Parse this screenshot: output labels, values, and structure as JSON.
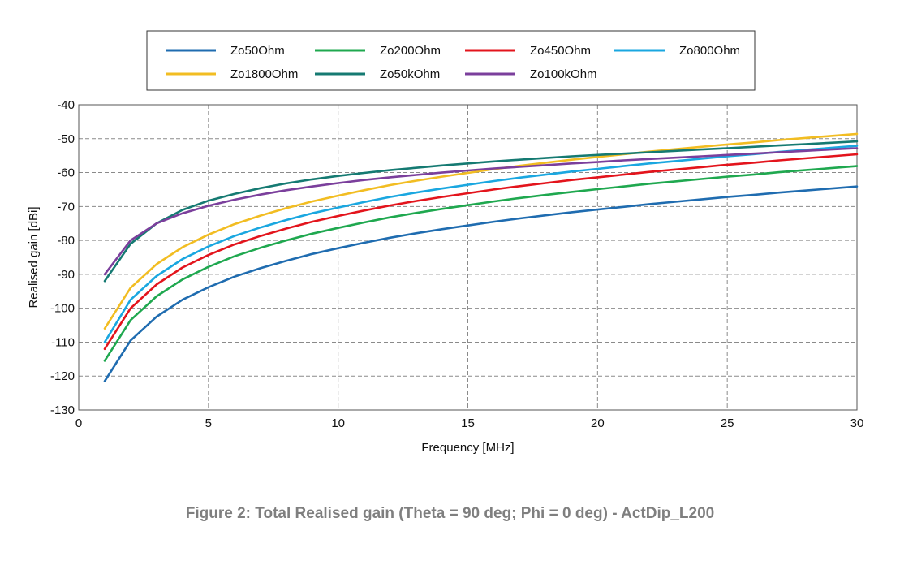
{
  "caption": "Figure 2: Total Realised gain (Theta = 90 deg; Phi = 0 deg) - ActDip_L200",
  "chart_data": {
    "type": "line",
    "xlabel": "Frequency [MHz]",
    "ylabel": "Realised gain [dBi]",
    "xlim": [
      0,
      30
    ],
    "ylim": [
      -130,
      -40
    ],
    "xticks": [
      0,
      5,
      10,
      15,
      20,
      25,
      30
    ],
    "yticks": [
      -40,
      -50,
      -60,
      -70,
      -80,
      -90,
      -100,
      -110,
      -120,
      -130
    ],
    "grid": true,
    "legend_position": "top",
    "x": [
      1,
      2,
      3,
      4,
      5,
      6,
      7,
      8,
      9,
      10,
      11,
      12,
      13,
      14,
      15,
      16,
      17,
      18,
      19,
      20,
      21,
      22,
      23,
      24,
      25,
      26,
      27,
      28,
      29,
      30
    ],
    "series": [
      {
        "name": "Zo50Ohm",
        "color": "#1f6cb0",
        "values": [
          -121.5,
          -109.5,
          -102.5,
          -97.5,
          -93.8,
          -90.7,
          -88.2,
          -86,
          -84,
          -82.3,
          -80.7,
          -79.2,
          -77.9,
          -76.7,
          -75.6,
          -74.5,
          -73.5,
          -72.6,
          -71.7,
          -70.9,
          -70.1,
          -69.3,
          -68.6,
          -67.9,
          -67.2,
          -66.6,
          -65.9,
          -65.3,
          -64.7,
          -64.1
        ]
      },
      {
        "name": "Zo200Ohm",
        "color": "#1fa84f",
        "values": [
          -115.5,
          -103.5,
          -96.5,
          -91.5,
          -87.8,
          -84.7,
          -82.2,
          -80,
          -78,
          -76.3,
          -74.7,
          -73.2,
          -71.9,
          -70.7,
          -69.6,
          -68.5,
          -67.5,
          -66.6,
          -65.7,
          -64.9,
          -64.1,
          -63.3,
          -62.6,
          -61.9,
          -61.2,
          -60.6,
          -59.9,
          -59.3,
          -58.7,
          -58.1
        ]
      },
      {
        "name": "Zo450Ohm",
        "color": "#e3141c",
        "values": [
          -112,
          -100,
          -93,
          -88,
          -84.3,
          -81.2,
          -78.7,
          -76.5,
          -74.5,
          -72.8,
          -71.2,
          -69.7,
          -68.4,
          -67.2,
          -66.1,
          -65,
          -64,
          -63.1,
          -62.2,
          -61.4,
          -60.6,
          -59.8,
          -59.1,
          -58.4,
          -57.7,
          -57.1,
          -56.4,
          -55.8,
          -55.2,
          -54.6
        ]
      },
      {
        "name": "Zo800Ohm",
        "color": "#1aa7e0",
        "values": [
          -110,
          -97.5,
          -90.5,
          -85.5,
          -81.8,
          -78.7,
          -76.2,
          -74,
          -72,
          -70.3,
          -68.7,
          -67.2,
          -65.9,
          -64.7,
          -63.6,
          -62.5,
          -61.5,
          -60.6,
          -59.7,
          -58.9,
          -58.1,
          -57.3,
          -56.6,
          -55.9,
          -55.2,
          -54.6,
          -53.9,
          -53.3,
          -52.7,
          -52.1
        ]
      },
      {
        "name": "Zo1800Ohm",
        "color": "#f2bd22",
        "values": [
          -106,
          -94,
          -87,
          -82,
          -78.3,
          -75.2,
          -72.7,
          -70.5,
          -68.5,
          -66.8,
          -65.2,
          -63.7,
          -62.4,
          -61.2,
          -60.1,
          -59,
          -58,
          -57.1,
          -56.2,
          -55.4,
          -54.6,
          -53.8,
          -53.1,
          -52.4,
          -51.7,
          -51.1,
          -50.4,
          -49.8,
          -49.2,
          -48.6
        ]
      },
      {
        "name": "Zo50kOhm",
        "color": "#157a72",
        "values": [
          -92,
          -81,
          -75,
          -71,
          -68.3,
          -66.3,
          -64.6,
          -63.2,
          -62,
          -61,
          -60.1,
          -59.3,
          -58.6,
          -57.9,
          -57.3,
          -56.7,
          -56.2,
          -55.7,
          -55.2,
          -54.8,
          -54.4,
          -54,
          -53.6,
          -53.2,
          -52.8,
          -52.4,
          -52,
          -51.6,
          -51.2,
          -50.8
        ]
      },
      {
        "name": "Zo100kOhm",
        "color": "#7b3f9c",
        "values": [
          -90,
          -80,
          -75,
          -72,
          -69.8,
          -68,
          -66.5,
          -65.2,
          -64.1,
          -63.1,
          -62.2,
          -61.4,
          -60.7,
          -60,
          -59.4,
          -58.8,
          -58.3,
          -57.8,
          -57.3,
          -56.9,
          -56.4,
          -56,
          -55.6,
          -55.2,
          -54.8,
          -54.4,
          -54,
          -53.6,
          -53.2,
          -52.8
        ]
      }
    ]
  }
}
